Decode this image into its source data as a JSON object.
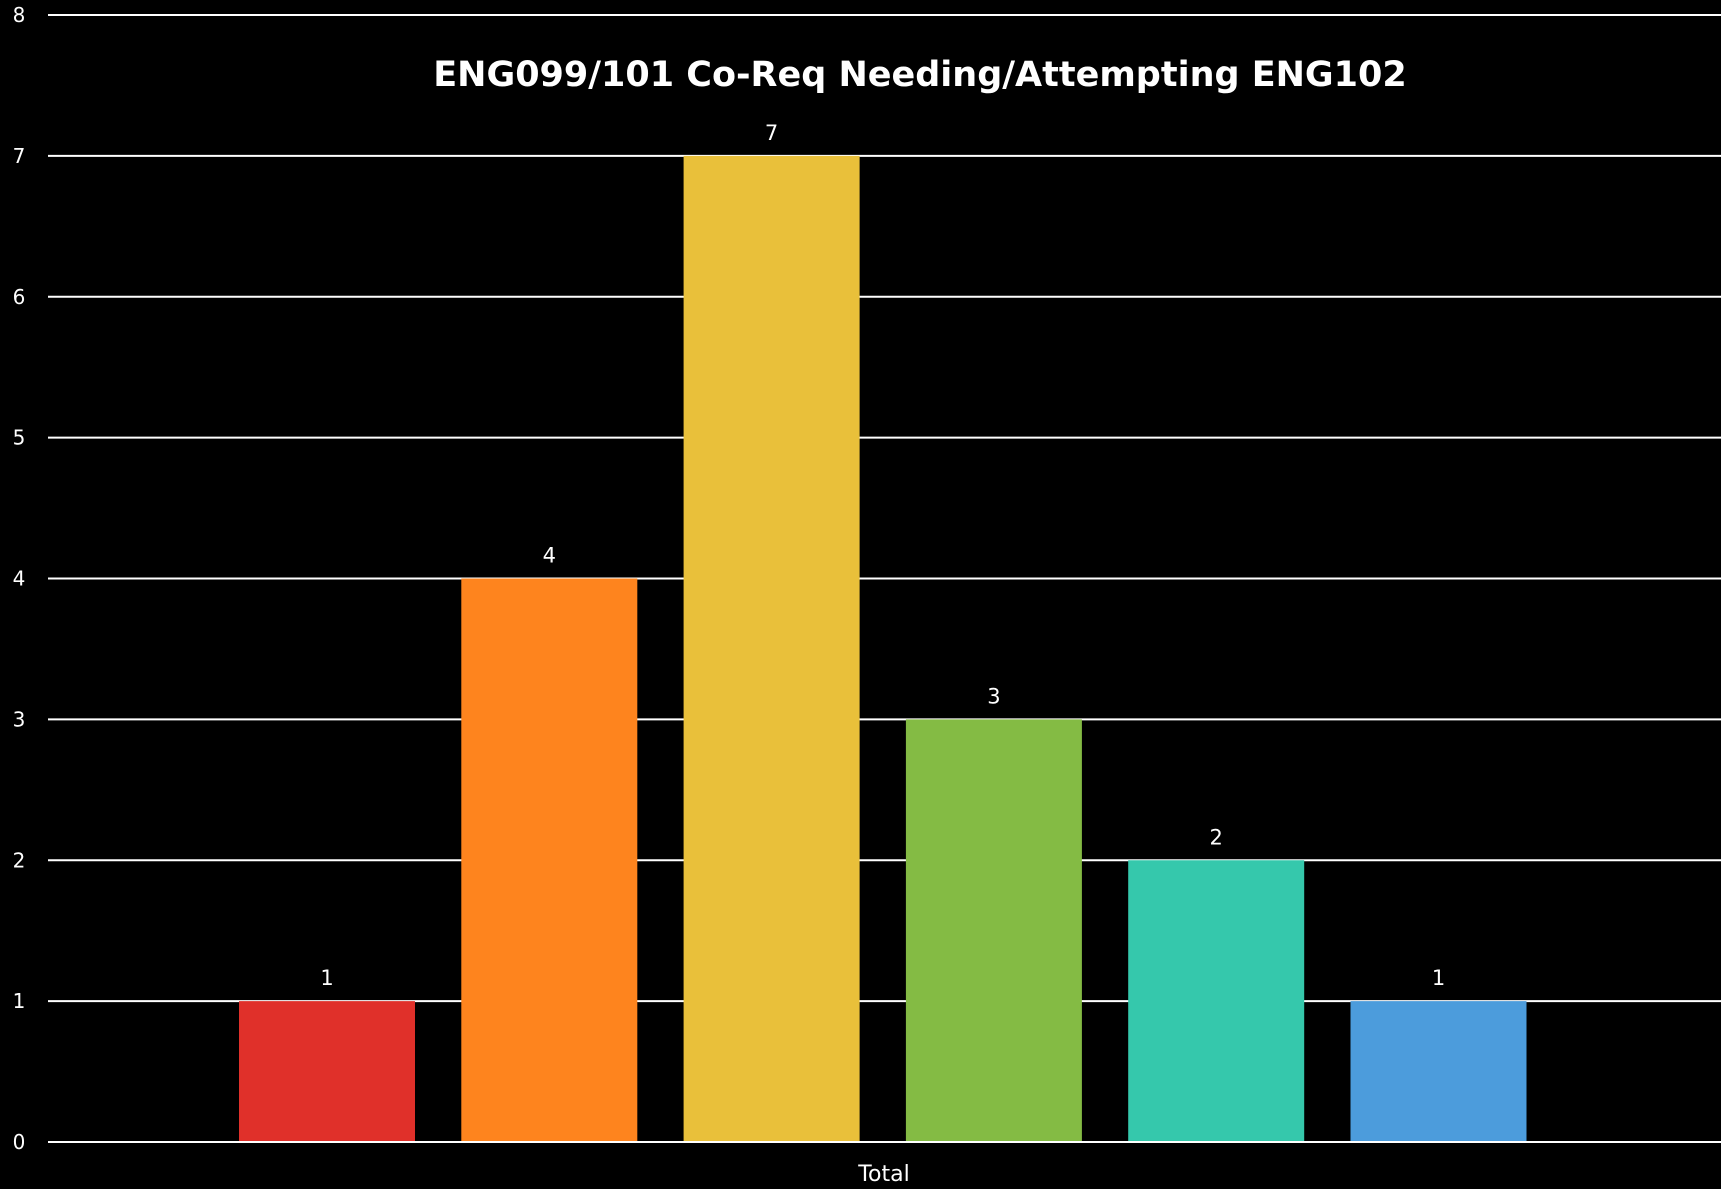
{
  "chart_data": {
    "type": "bar",
    "title": "ENG099/101 Co-Req Needing/Attempting ENG102",
    "categories": [
      "Total"
    ],
    "series": [
      {
        "values": [
          1
        ],
        "color": "#E0302A"
      },
      {
        "values": [
          4
        ],
        "color": "#FE841E"
      },
      {
        "values": [
          7
        ],
        "color": "#E9C03A"
      },
      {
        "values": [
          3
        ],
        "color": "#84BB44"
      },
      {
        "values": [
          2
        ],
        "color": "#35C8AC"
      },
      {
        "values": [
          1
        ],
        "color": "#4C9CDC"
      }
    ],
    "ylim": [
      0,
      8
    ],
    "yticks": [
      "0",
      "1",
      "2",
      "3",
      "4",
      "5",
      "6",
      "7",
      "8"
    ],
    "grid": true,
    "legend": "none",
    "background": "#000000",
    "text_color": "#FFFFFF"
  }
}
